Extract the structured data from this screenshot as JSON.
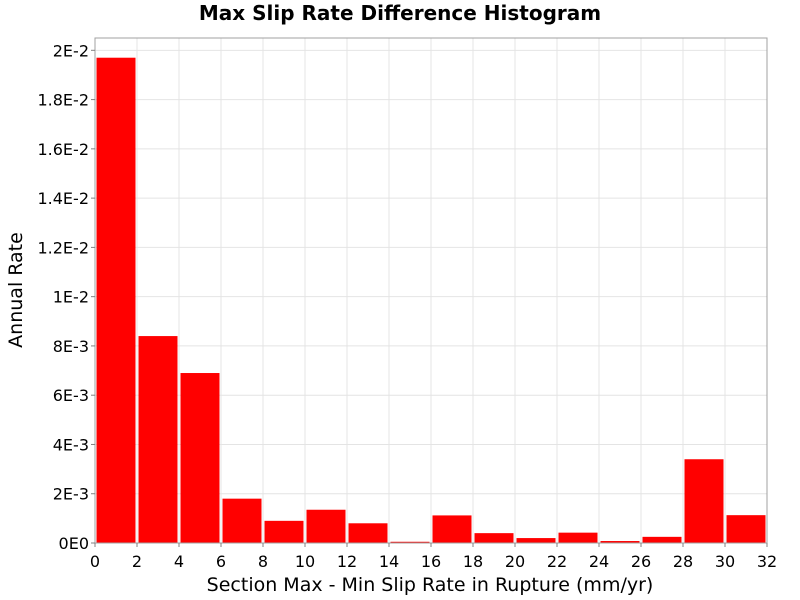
{
  "chart_data": {
    "type": "bar",
    "title": "Max Slip Rate Difference Histogram",
    "xlabel": "Section Max - Min Slip Rate in Rupture (mm/yr)",
    "ylabel": "Annual Rate",
    "xlim": [
      0,
      32
    ],
    "ylim": [
      0,
      0.0205
    ],
    "bin_width": 2,
    "bin_centers": [
      1,
      3,
      5,
      7,
      9,
      11,
      13,
      15,
      17,
      19,
      21,
      23,
      25,
      27,
      29,
      31
    ],
    "values": [
      0.0197,
      0.0084,
      0.0069,
      0.0018,
      0.0009,
      0.00135,
      0.0008,
      5e-05,
      0.00112,
      0.0004,
      0.0002,
      0.00042,
      8e-05,
      0.00025,
      0.0034,
      0.00113
    ],
    "bar_color": "#ff0000",
    "x_ticks": [
      0,
      2,
      4,
      6,
      8,
      10,
      12,
      14,
      16,
      18,
      20,
      22,
      24,
      26,
      28,
      30,
      32
    ],
    "x_tick_labels": [
      "0",
      "2",
      "4",
      "6",
      "8",
      "10",
      "12",
      "14",
      "16",
      "18",
      "20",
      "22",
      "24",
      "26",
      "28",
      "30",
      "32"
    ],
    "y_ticks": [
      0,
      0.002,
      0.004,
      0.006,
      0.008,
      0.01,
      0.012,
      0.014,
      0.016,
      0.018,
      0.02
    ],
    "y_tick_labels": [
      "0E0",
      "2E-3",
      "4E-3",
      "6E-3",
      "8E-3",
      "1E-2",
      "1.2E-2",
      "1.4E-2",
      "1.6E-2",
      "1.8E-2",
      "2E-2"
    ],
    "grid": true,
    "legend": "none"
  }
}
